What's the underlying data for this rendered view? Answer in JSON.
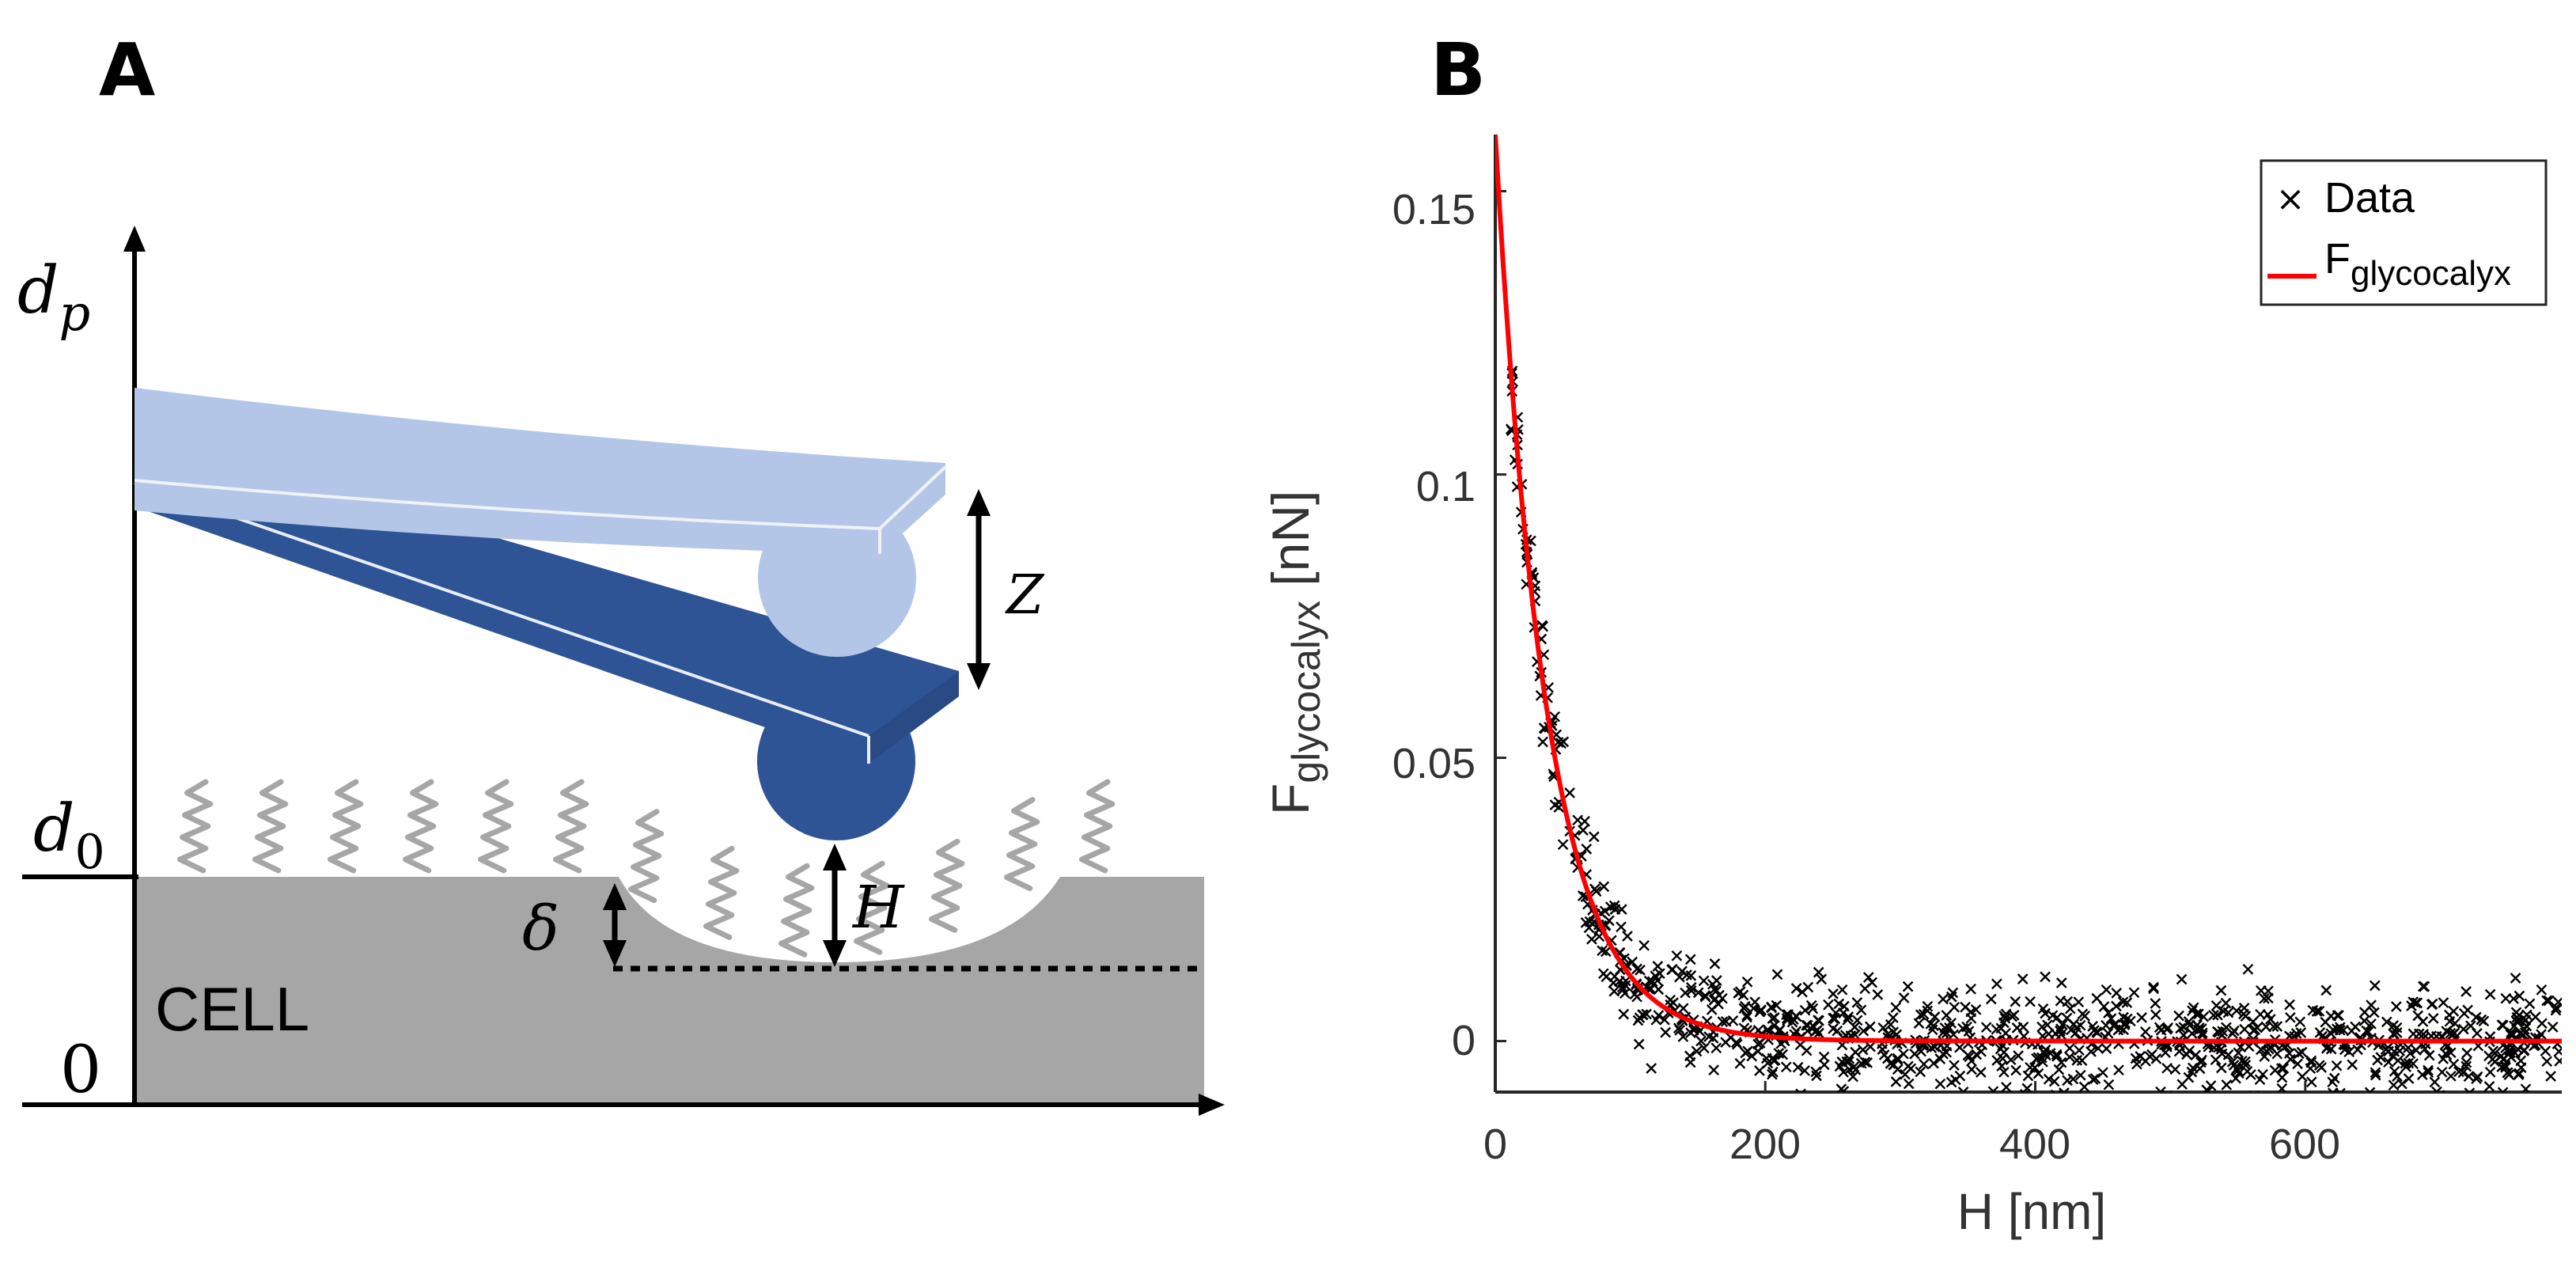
{
  "panel_a": {
    "label": "A",
    "y_axis_top_symbol": "d",
    "y_axis_top_sub": "p",
    "d0_symbol": "d",
    "d0_sub": "0",
    "zero_label": "0",
    "cell_label": "CELL",
    "z_label": "Z",
    "delta_label": "δ",
    "h_label": "H",
    "colors": {
      "cantilever_light": "#b4c6e7",
      "cantilever_dark": "#2f5496",
      "cell": "#a6a6a6",
      "glycocalyx": "#a6a6a6"
    }
  },
  "panel_b": {
    "label": "B",
    "legend": {
      "data_marker": "×",
      "data_label": "Data",
      "fit_label_main": "F",
      "fit_label_sub": "glycocalyx"
    },
    "xlabel": "H [nm]",
    "ylabel_main": "F",
    "ylabel_sub": "glycocalyx",
    "ylabel_unit": " [nN]",
    "colors": {
      "data": "#000000",
      "fit": "#ff0000"
    }
  },
  "chart_data": {
    "type": "scatter",
    "title": "",
    "xlabel": "H [nm]",
    "ylabel": "F_glycocalyx [nN]",
    "xlim": [
      0,
      790
    ],
    "ylim": [
      -0.009,
      0.16
    ],
    "xticks": [
      "0",
      "200",
      "400",
      "600"
    ],
    "yticks": [
      "0",
      "0.05",
      "0.1",
      "0.15"
    ],
    "xtick_values": [
      0,
      200,
      400,
      600
    ],
    "ytick_values": [
      0,
      0.05,
      0.1,
      0.15
    ],
    "legend_position": "top-right",
    "series": [
      {
        "name": "Data",
        "kind": "markers",
        "marker": "x",
        "points_estimated": "exponential decay with noise, ~1000 points over 10-790 nm"
      },
      {
        "name": "F_glycocalyx",
        "kind": "line",
        "model": "exponential",
        "amplitude": 0.16,
        "decay_length_nm": 38,
        "x_range": [
          0,
          790
        ]
      }
    ]
  }
}
